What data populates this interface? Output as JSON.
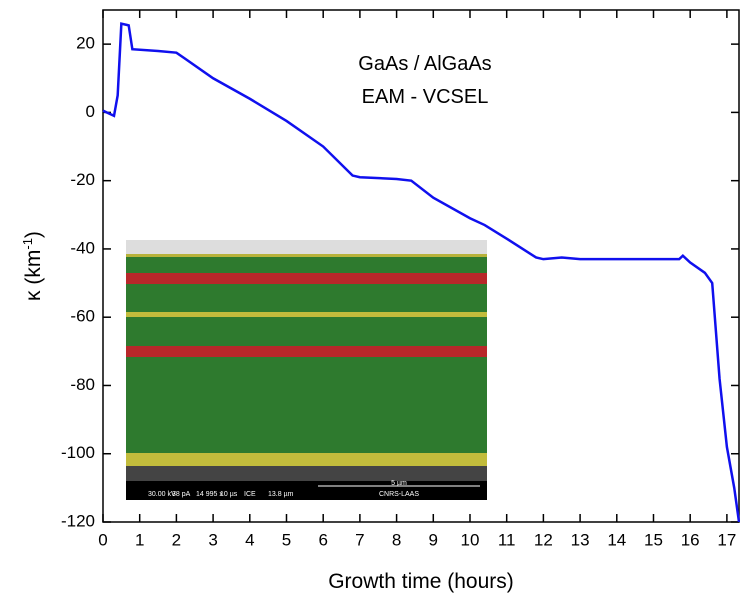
{
  "chart_data": {
    "type": "line",
    "x_label": "Growth time (hours)",
    "y_label": {
      "text": "κ (km",
      "sup": "-1",
      "close": ")"
    },
    "annotations": [
      "GaAs / AlGaAs",
      "EAM - VCSEL"
    ],
    "inset": {
      "scale_bar": "5 µm",
      "lab": "CNRS-LAAS",
      "fields": [
        "30.00 kV",
        "38 pA",
        "14 995 x",
        "10 µs",
        "ICE",
        "13.8 µm"
      ]
    },
    "x": [
      0,
      0.2,
      0.3,
      0.4,
      0.5,
      0.7,
      0.8,
      1.5,
      2,
      2.2,
      3,
      4,
      5,
      6,
      6.8,
      7,
      8,
      8.4,
      9,
      10,
      10.4,
      11,
      11.8,
      12,
      12.5,
      13,
      15.7,
      15.8,
      16,
      16.4,
      16.6,
      16.8,
      17,
      17.2,
      17.33
    ],
    "series": [
      {
        "name": "kappa",
        "color": "#1010ee",
        "values": [
          0.5,
          -0.5,
          -1,
          5,
          26,
          25.5,
          18.5,
          18,
          17.5,
          16,
          10,
          4,
          -2.5,
          -10,
          -18.5,
          -19,
          -19.5,
          -20,
          -25,
          -31,
          -33,
          -37,
          -42.5,
          -43,
          -42.5,
          -43,
          -43,
          -42,
          -44,
          -47,
          -50,
          -78,
          -98,
          -110,
          -120
        ]
      }
    ],
    "xlim": [
      0,
      17.33
    ],
    "ylim": [
      -120,
      30
    ],
    "xticks": [
      0,
      1,
      2,
      3,
      4,
      5,
      6,
      7,
      8,
      9,
      10,
      11,
      12,
      13,
      14,
      15,
      16,
      17
    ],
    "yticks": [
      -120,
      -100,
      -80,
      -60,
      -40,
      -20,
      0,
      20
    ]
  }
}
